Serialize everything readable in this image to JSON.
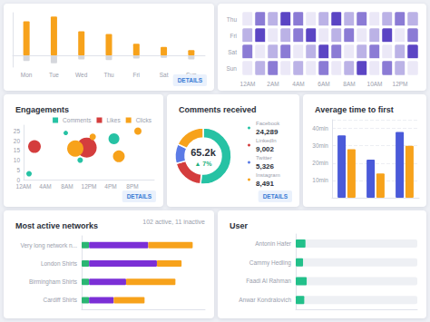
{
  "chart_data": [
    {
      "type": "bar",
      "categories": [
        "Mon",
        "Tue",
        "Wed",
        "Thu",
        "Fri",
        "Sat",
        "Sun"
      ],
      "series": [
        {
          "color": "#f7a21b",
          "values": [
            88,
            100,
            62,
            55,
            30,
            22,
            14
          ]
        },
        {
          "color": "#d5d7dc",
          "values": [
            -14,
            -20,
            -10,
            -12,
            -8,
            -6,
            -10
          ]
        }
      ],
      "stacked": true,
      "ylim": [
        -30,
        110
      ],
      "tick_labels": "x",
      "annotations": [
        "DETAILS"
      ]
    },
    {
      "type": "heatmap",
      "categories": [
        "12AM",
        null,
        "2AM",
        null,
        "4AM",
        null,
        "6AM",
        null,
        "8AM",
        null,
        "10AM",
        null,
        "12PM",
        null
      ],
      "y_categories": [
        "Thu",
        "Fri",
        "Sat",
        "Sun"
      ],
      "values": [
        [
          1,
          3,
          2,
          4,
          3,
          1,
          2,
          4,
          2,
          3,
          1,
          2,
          3,
          2
        ],
        [
          2,
          4,
          1,
          2,
          3,
          4,
          1,
          2,
          3,
          1,
          2,
          4,
          1,
          3
        ],
        [
          3,
          1,
          2,
          3,
          1,
          2,
          4,
          3,
          1,
          2,
          3,
          1,
          2,
          4
        ],
        [
          1,
          2,
          3,
          1,
          2,
          1,
          3,
          1,
          2,
          4,
          1,
          3,
          2,
          1
        ]
      ],
      "color": "#5b45c4"
    },
    {
      "type": "scatter",
      "title": "Engagements",
      "series": [
        {
          "name": "Comments",
          "color": "#26c2a4",
          "x": [
            1,
            7.75,
            10.4,
            16.6
          ],
          "values": [
            3,
            24,
            10,
            21
          ],
          "sizes": [
            6,
            5,
            6,
            12
          ]
        },
        {
          "name": "Likes",
          "color": "#d43d3d",
          "x": [
            2,
            11.6
          ],
          "values": [
            17,
            16.5
          ],
          "sizes": [
            14,
            22
          ]
        },
        {
          "name": "Clicks",
          "color": "#f7a21b",
          "x": [
            9.5,
            12.7,
            17.5,
            21
          ],
          "values": [
            16,
            22,
            12,
            25
          ],
          "sizes": [
            18,
            7,
            13,
            8
          ]
        }
      ],
      "xlim": [
        0,
        24
      ],
      "xticks": [
        {
          "value": 0,
          "label": "12AM"
        },
        {
          "value": 4,
          "label": "4AM"
        },
        {
          "value": 8,
          "label": "8AM"
        },
        {
          "value": 12,
          "label": "12PM"
        },
        {
          "value": 16,
          "label": "4PM"
        },
        {
          "value": 20,
          "label": "8PM"
        }
      ],
      "ylim": [
        0,
        28
      ],
      "yticks": [
        0,
        5,
        10,
        15,
        20,
        25
      ],
      "legend": "top-right",
      "annotations": [
        "DETAILS"
      ]
    },
    {
      "type": "pie",
      "title": "Comments received",
      "categories": [
        "Facebook",
        "LinkedIn",
        "Twitter",
        "Instagram"
      ],
      "values": [
        24289,
        9002,
        5326,
        8491
      ],
      "value_labels": [
        "24,289",
        "9,002",
        "5,326",
        "8,491"
      ],
      "colors": [
        "#26c2a4",
        "#d43d3d",
        "#5b7be6",
        "#f7a21b"
      ],
      "legend": "right",
      "annotations": [
        "65.2k",
        "▲ 7%",
        "DETAILS"
      ]
    },
    {
      "type": "bar",
      "title": "Average time to first",
      "categories": [
        null,
        null,
        null
      ],
      "series": [
        {
          "color": "#4a5ad9",
          "values": [
            36,
            22,
            38
          ]
        },
        {
          "color": "#f7a21b",
          "values": [
            28,
            14,
            30
          ]
        }
      ],
      "ylim": [
        0,
        45
      ],
      "yticks": [
        {
          "value": 10,
          "label": "10min"
        },
        {
          "value": 20,
          "label": "20min"
        },
        {
          "value": 30,
          "label": "30min"
        },
        {
          "value": 40,
          "label": "40min"
        }
      ],
      "grid": true,
      "tick_labels": "y"
    },
    {
      "type": "bar",
      "title": "Most active networks",
      "orientation": "horizontal",
      "stacked": true,
      "categories": [
        "Very long network n...",
        "London Shirts",
        "Birmingham Shirts",
        "Cardiff Shirts"
      ],
      "series": [
        {
          "color": "#2bb673",
          "values": [
            6,
            6,
            6,
            6
          ]
        },
        {
          "color": "#7b2fd6",
          "values": [
            48,
            55,
            30,
            20
          ]
        },
        {
          "color": "#f7a21b",
          "values": [
            36,
            20,
            40,
            25
          ]
        }
      ],
      "xlim": [
        0,
        100
      ],
      "tick_labels": "y",
      "annotations": [
        "102 active, 11 inactive"
      ]
    },
    {
      "type": "bar",
      "title": "User",
      "orientation": "horizontal",
      "categories": [
        "Antonin Hafer",
        "Cammy Hedling",
        "Faadi Al Rahman",
        "Anwar Kondralovich"
      ],
      "values": [
        8,
        6,
        9,
        7
      ],
      "color": "#22c08a",
      "xlim": [
        0,
        100
      ],
      "tick_labels": "y"
    }
  ]
}
